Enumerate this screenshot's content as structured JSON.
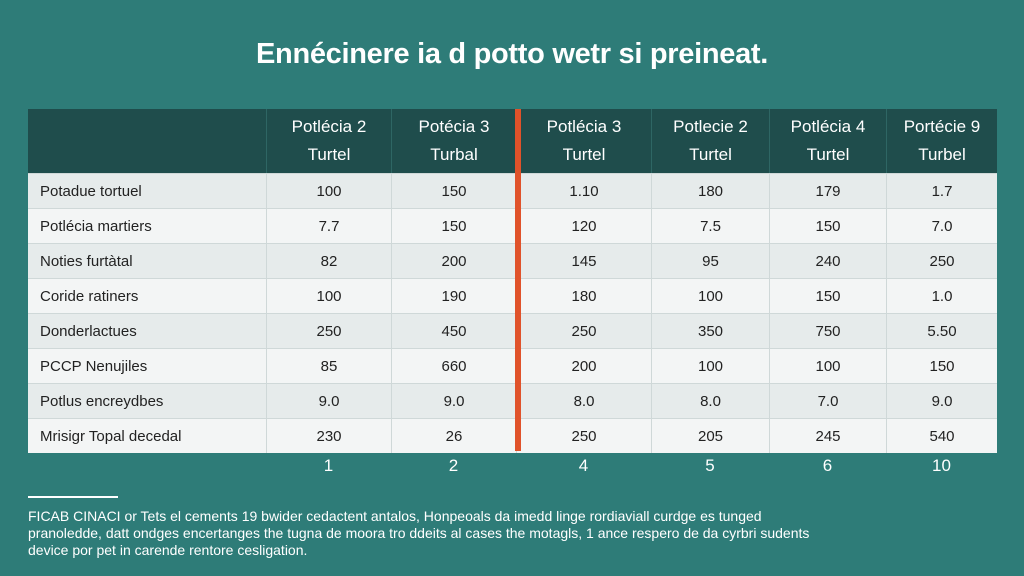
{
  "title": "Ennécinere ia d potto wetr si preineat.",
  "colors": {
    "background": "#2e7c78",
    "header": "#1f4d4c",
    "accent": "#e0522a"
  },
  "chart_data": {
    "type": "table",
    "title": "Ennécinere ia d potto wetr si preineat.",
    "columns": [
      {
        "line1": "Potlécia 2",
        "line2": "Turtel"
      },
      {
        "line1": "Potécia 3",
        "line2": "Turbal"
      },
      {
        "line1": "Potlécia 3",
        "line2": "Turtel"
      },
      {
        "line1": "Potlecie 2",
        "line2": "Turtel"
      },
      {
        "line1": "Potlécia 4",
        "line2": "Turtel"
      },
      {
        "line1": "Portécie 9",
        "line2": "Turbel"
      }
    ],
    "rows": [
      {
        "label": "Potadue tortuel",
        "values": [
          "100",
          "150",
          "1.10",
          "180",
          "179",
          "1.7"
        ]
      },
      {
        "label": "Potlécia martiers",
        "values": [
          "7.7",
          "150",
          "120",
          "7.5",
          "150",
          "7.0"
        ]
      },
      {
        "label": "Noties furtàtal",
        "values": [
          "82",
          "200",
          "145",
          "95",
          "240",
          "250"
        ]
      },
      {
        "label": "Coride ratiners",
        "values": [
          "100",
          "190",
          "180",
          "100",
          "150",
          "1.0"
        ]
      },
      {
        "label": "Donderlactues",
        "values": [
          "250",
          "450",
          "250",
          "350",
          "750",
          "5.50"
        ]
      },
      {
        "label": "PCCP Nenujiles",
        "values": [
          "85",
          "660",
          "200",
          "100",
          "100",
          "150"
        ]
      },
      {
        "label": "Potlus encreydbes",
        "values": [
          "9.0",
          "9.0",
          "8.0",
          "8.0",
          "7.0",
          "9.0"
        ]
      },
      {
        "label": "Mrisigr Topal decedal",
        "values": [
          "230",
          "26",
          "250",
          "205",
          "245",
          "540"
        ]
      }
    ],
    "footer_numbers": [
      "1",
      "2",
      "4",
      "5",
      "6",
      "10"
    ]
  },
  "footnote": "FICAB CINACI or Tets el cements 19 bwider cedactent antalos, Honpeoals da imedd linge rordiaviall curdge es tunged pranoledde, datt ondges encertanges the tugna de moora tro ddeits al cases the motagls, 1 ance respero de da cyrbri sudents device por pet in carende rentore cesligation."
}
